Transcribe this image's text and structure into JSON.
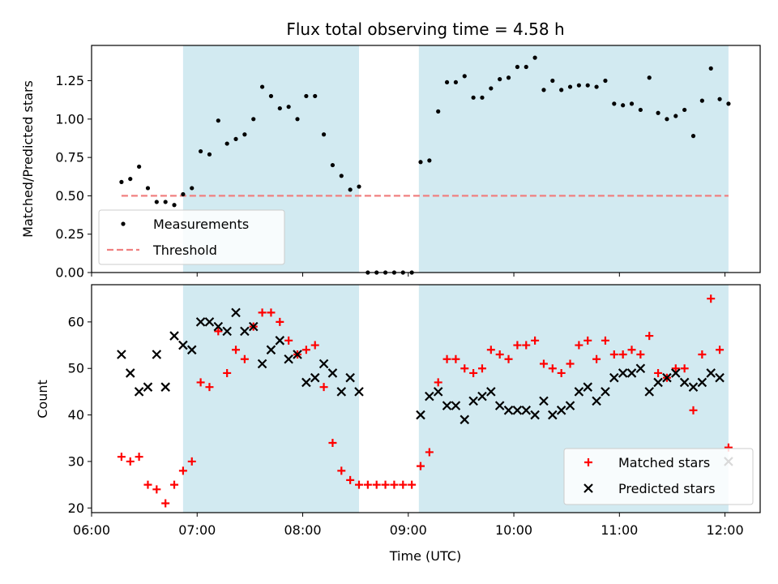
{
  "chart_data": [
    {
      "type": "scatter",
      "title": "Flux total observing time = 4.58 h",
      "xlabel": "",
      "ylabel": "Matched/Predicted stars",
      "xlim": [
        "06:00",
        "12:20"
      ],
      "ylim": [
        0,
        1.48
      ],
      "yticks": [
        "0.00",
        "0.25",
        "0.50",
        "0.75",
        "1.00",
        "1.25"
      ],
      "shaded_intervals": [
        [
          "06:52",
          "08:32"
        ],
        [
          "09:06",
          "12:02"
        ]
      ],
      "shade_color": "#add8e6",
      "threshold": {
        "name": "Threshold",
        "value": 0.5,
        "from": "06:17",
        "to": "12:02",
        "color": "#f08080"
      },
      "legend": {
        "position": "lower-left",
        "entries": [
          "Measurements",
          "Threshold"
        ]
      },
      "series": [
        {
          "name": "Measurements",
          "color": "#000000",
          "points": [
            [
              "06:17",
              0.59
            ],
            [
              "06:22",
              0.61
            ],
            [
              "06:27",
              0.69
            ],
            [
              "06:32",
              0.55
            ],
            [
              "06:37",
              0.46
            ],
            [
              "06:42",
              0.46
            ],
            [
              "06:47",
              0.44
            ],
            [
              "06:52",
              0.51
            ],
            [
              "06:57",
              0.55
            ],
            [
              "07:02",
              0.79
            ],
            [
              "07:07",
              0.77
            ],
            [
              "07:12",
              0.99
            ],
            [
              "07:17",
              0.84
            ],
            [
              "07:22",
              0.87
            ],
            [
              "07:27",
              0.9
            ],
            [
              "07:32",
              1.0
            ],
            [
              "07:37",
              1.21
            ],
            [
              "07:42",
              1.15
            ],
            [
              "07:47",
              1.07
            ],
            [
              "07:52",
              1.08
            ],
            [
              "07:57",
              1.0
            ],
            [
              "08:02",
              1.15
            ],
            [
              "08:07",
              1.15
            ],
            [
              "08:12",
              0.9
            ],
            [
              "08:17",
              0.7
            ],
            [
              "08:22",
              0.63
            ],
            [
              "08:27",
              0.54
            ],
            [
              "08:32",
              0.56
            ],
            [
              "08:37",
              0.0
            ],
            [
              "08:42",
              0.0
            ],
            [
              "08:47",
              0.0
            ],
            [
              "08:52",
              0.0
            ],
            [
              "08:57",
              0.0
            ],
            [
              "09:02",
              0.0
            ],
            [
              "09:07",
              0.72
            ],
            [
              "09:12",
              0.73
            ],
            [
              "09:17",
              1.05
            ],
            [
              "09:22",
              1.24
            ],
            [
              "09:27",
              1.24
            ],
            [
              "09:32",
              1.28
            ],
            [
              "09:37",
              1.14
            ],
            [
              "09:42",
              1.14
            ],
            [
              "09:47",
              1.2
            ],
            [
              "09:52",
              1.26
            ],
            [
              "09:57",
              1.27
            ],
            [
              "10:02",
              1.34
            ],
            [
              "10:07",
              1.34
            ],
            [
              "10:12",
              1.4
            ],
            [
              "10:17",
              1.19
            ],
            [
              "10:22",
              1.25
            ],
            [
              "10:27",
              1.19
            ],
            [
              "10:32",
              1.21
            ],
            [
              "10:37",
              1.22
            ],
            [
              "10:42",
              1.22
            ],
            [
              "10:47",
              1.21
            ],
            [
              "10:52",
              1.25
            ],
            [
              "10:57",
              1.1
            ],
            [
              "11:02",
              1.09
            ],
            [
              "11:07",
              1.1
            ],
            [
              "11:12",
              1.06
            ],
            [
              "11:17",
              1.27
            ],
            [
              "11:22",
              1.04
            ],
            [
              "11:27",
              1.0
            ],
            [
              "11:32",
              1.02
            ],
            [
              "11:37",
              1.06
            ],
            [
              "11:42",
              0.89
            ],
            [
              "11:47",
              1.12
            ],
            [
              "11:52",
              1.33
            ],
            [
              "11:57",
              1.13
            ],
            [
              "12:02",
              1.1
            ]
          ]
        }
      ]
    },
    {
      "type": "scatter",
      "title": "",
      "xlabel": "Time (UTC)",
      "ylabel": "Count",
      "xlim": [
        "06:00",
        "12:20"
      ],
      "ylim": [
        19,
        68
      ],
      "yticks": [
        "20",
        "30",
        "40",
        "50",
        "60"
      ],
      "xticks": [
        "06:00",
        "07:00",
        "08:00",
        "09:00",
        "10:00",
        "11:00",
        "12:00"
      ],
      "shaded_intervals": [
        [
          "06:52",
          "08:32"
        ],
        [
          "09:06",
          "12:02"
        ]
      ],
      "shade_color": "#add8e6",
      "legend": {
        "position": "lower-right",
        "entries": [
          "Matched stars",
          "Predicted stars"
        ]
      },
      "series": [
        {
          "name": "Matched stars",
          "marker": "plus",
          "color": "#ff0000",
          "points": [
            [
              "06:17",
              31
            ],
            [
              "06:22",
              30
            ],
            [
              "06:27",
              31
            ],
            [
              "06:32",
              25
            ],
            [
              "06:37",
              24
            ],
            [
              "06:42",
              21
            ],
            [
              "06:47",
              25
            ],
            [
              "06:52",
              28
            ],
            [
              "06:57",
              30
            ],
            [
              "07:02",
              47
            ],
            [
              "07:07",
              46
            ],
            [
              "07:12",
              58
            ],
            [
              "07:17",
              49
            ],
            [
              "07:22",
              54
            ],
            [
              "07:27",
              52
            ],
            [
              "07:32",
              59
            ],
            [
              "07:37",
              62
            ],
            [
              "07:42",
              62
            ],
            [
              "07:47",
              60
            ],
            [
              "07:52",
              56
            ],
            [
              "07:57",
              53
            ],
            [
              "08:02",
              54
            ],
            [
              "08:07",
              55
            ],
            [
              "08:12",
              46
            ],
            [
              "08:17",
              34
            ],
            [
              "08:22",
              28
            ],
            [
              "08:27",
              26
            ],
            [
              "08:32",
              25
            ],
            [
              "08:37",
              25
            ],
            [
              "08:42",
              25
            ],
            [
              "08:47",
              25
            ],
            [
              "08:52",
              25
            ],
            [
              "08:57",
              25
            ],
            [
              "09:02",
              25
            ],
            [
              "09:07",
              29
            ],
            [
              "09:12",
              32
            ],
            [
              "09:17",
              47
            ],
            [
              "09:22",
              52
            ],
            [
              "09:27",
              52
            ],
            [
              "09:32",
              50
            ],
            [
              "09:37",
              49
            ],
            [
              "09:42",
              50
            ],
            [
              "09:47",
              54
            ],
            [
              "09:52",
              53
            ],
            [
              "09:57",
              52
            ],
            [
              "10:02",
              55
            ],
            [
              "10:07",
              55
            ],
            [
              "10:12",
              56
            ],
            [
              "10:17",
              51
            ],
            [
              "10:22",
              50
            ],
            [
              "10:27",
              49
            ],
            [
              "10:32",
              51
            ],
            [
              "10:37",
              55
            ],
            [
              "10:42",
              56
            ],
            [
              "10:47",
              52
            ],
            [
              "10:52",
              56
            ],
            [
              "10:57",
              53
            ],
            [
              "11:02",
              53
            ],
            [
              "11:07",
              54
            ],
            [
              "11:12",
              53
            ],
            [
              "11:17",
              57
            ],
            [
              "11:22",
              49
            ],
            [
              "11:27",
              48
            ],
            [
              "11:32",
              50
            ],
            [
              "11:37",
              50
            ],
            [
              "11:42",
              41
            ],
            [
              "11:47",
              53
            ],
            [
              "11:52",
              65
            ],
            [
              "11:57",
              54
            ],
            [
              "12:02",
              33
            ]
          ]
        },
        {
          "name": "Predicted stars",
          "marker": "x",
          "color": "#000000",
          "points": [
            [
              "06:17",
              53
            ],
            [
              "06:22",
              49
            ],
            [
              "06:27",
              45
            ],
            [
              "06:32",
              46
            ],
            [
              "06:37",
              53
            ],
            [
              "06:42",
              46
            ],
            [
              "06:47",
              57
            ],
            [
              "06:52",
              55
            ],
            [
              "06:57",
              54
            ],
            [
              "07:02",
              60
            ],
            [
              "07:07",
              60
            ],
            [
              "07:12",
              59
            ],
            [
              "07:17",
              58
            ],
            [
              "07:22",
              62
            ],
            [
              "07:27",
              58
            ],
            [
              "07:32",
              59
            ],
            [
              "07:37",
              51
            ],
            [
              "07:42",
              54
            ],
            [
              "07:47",
              56
            ],
            [
              "07:52",
              52
            ],
            [
              "07:57",
              53
            ],
            [
              "08:02",
              47
            ],
            [
              "08:07",
              48
            ],
            [
              "08:12",
              51
            ],
            [
              "08:17",
              49
            ],
            [
              "08:22",
              45
            ],
            [
              "08:27",
              48
            ],
            [
              "08:32",
              45
            ],
            [
              "09:07",
              40
            ],
            [
              "09:12",
              44
            ],
            [
              "09:17",
              45
            ],
            [
              "09:22",
              42
            ],
            [
              "09:27",
              42
            ],
            [
              "09:32",
              39
            ],
            [
              "09:37",
              43
            ],
            [
              "09:42",
              44
            ],
            [
              "09:47",
              45
            ],
            [
              "09:52",
              42
            ],
            [
              "09:57",
              41
            ],
            [
              "10:02",
              41
            ],
            [
              "10:07",
              41
            ],
            [
              "10:12",
              40
            ],
            [
              "10:17",
              43
            ],
            [
              "10:22",
              40
            ],
            [
              "10:27",
              41
            ],
            [
              "10:32",
              42
            ],
            [
              "10:37",
              45
            ],
            [
              "10:42",
              46
            ],
            [
              "10:47",
              43
            ],
            [
              "10:52",
              45
            ],
            [
              "10:57",
              48
            ],
            [
              "11:02",
              49
            ],
            [
              "11:07",
              49
            ],
            [
              "11:12",
              50
            ],
            [
              "11:17",
              45
            ],
            [
              "11:22",
              47
            ],
            [
              "11:27",
              48
            ],
            [
              "11:32",
              49
            ],
            [
              "11:37",
              47
            ],
            [
              "11:42",
              46
            ],
            [
              "11:47",
              47
            ],
            [
              "11:52",
              49
            ],
            [
              "11:57",
              48
            ],
            [
              "12:02",
              30
            ]
          ]
        }
      ]
    }
  ]
}
